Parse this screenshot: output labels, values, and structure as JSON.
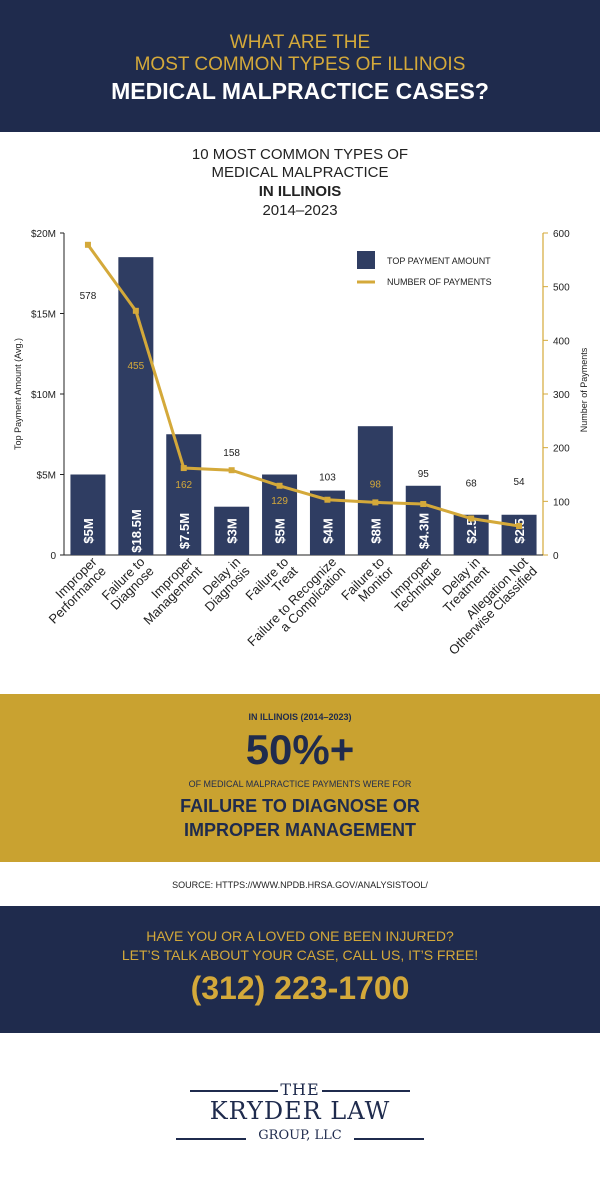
{
  "header": {
    "line1": "WHAT ARE THE",
    "line2": "MOST COMMON TYPES OF ILLINOIS",
    "line3": "MEDICAL MALPRACTICE CASES?"
  },
  "chart_title": {
    "line1": "10 MOST COMMON TYPES OF",
    "line2": "MEDICAL MALPRACTICE",
    "line3": "IN ILLINOIS",
    "line4": "2014–2023"
  },
  "chart_data": {
    "type": "bar",
    "categories": [
      [
        "Improper",
        "Performance"
      ],
      [
        "Failure to",
        "Diagnose"
      ],
      [
        "Improper",
        "Management"
      ],
      [
        "Delay in",
        "Diagnosis"
      ],
      [
        "Failure to",
        "Treat"
      ],
      [
        "Failure to Recognize",
        "a Complication"
      ],
      [
        "Failure to",
        "Monitor"
      ],
      [
        "Improper",
        "Technique"
      ],
      [
        "Delay in",
        "Treatment"
      ],
      [
        "Allegation Not",
        "Otherwise Classified"
      ]
    ],
    "series": [
      {
        "name": "TOP PAYMENT AMOUNT",
        "type": "bar",
        "axis": "left",
        "values": [
          5,
          18.5,
          7.5,
          3,
          5,
          4,
          8,
          4.3,
          2.5,
          2.5
        ],
        "labels": [
          "$5M",
          "$18.5M",
          "$7.5M",
          "$3M",
          "$5M",
          "$4M",
          "$8M",
          "$4.3M",
          "$2.5",
          "$2.5"
        ],
        "color": "#2f3d62"
      },
      {
        "name": "NUMBER OF PAYMENTS",
        "type": "line",
        "axis": "right",
        "values": [
          578,
          455,
          162,
          158,
          129,
          103,
          98,
          95,
          68,
          54
        ],
        "color": "#d4a93a"
      }
    ],
    "ylabel": "Top Payment Amount (Avg.)",
    "ylabel_right": "Number of Payments",
    "ylim": [
      0,
      20
    ],
    "ylim_right": [
      0,
      600
    ],
    "yticks": [
      "0",
      "$5M",
      "$10M",
      "$15M",
      "$20M"
    ],
    "yticks_right": [
      "0",
      "100",
      "200",
      "300",
      "400",
      "500",
      "600"
    ],
    "legend_position": "top-right",
    "grid": false
  },
  "stat": {
    "kicker": "IN ILLINOIS (2014–2023)",
    "big": "50%+",
    "sub": "OF MEDICAL MALPRACTICE PAYMENTS WERE FOR",
    "line1": "FAILURE TO DIAGNOSE OR",
    "line2": "IMPROPER MANAGEMENT"
  },
  "source": "SOURCE: HTTPS://WWW.NPDB.HRSA.GOV/ANALYSISTOOL/",
  "cta": {
    "line1": "HAVE YOU OR A LOVED ONE BEEN INJURED?",
    "line2": "LET’S TALK ABOUT YOUR CASE, CALL US, IT’S FREE!",
    "phone": "(312) 223-1700"
  },
  "logo": {
    "the": "THE",
    "name": "KRYDER LAW",
    "group": "GROUP, LLC"
  },
  "colors": {
    "navy": "#1f2b4d",
    "gold": "#d4a93a",
    "bar": "#2f3d62"
  }
}
